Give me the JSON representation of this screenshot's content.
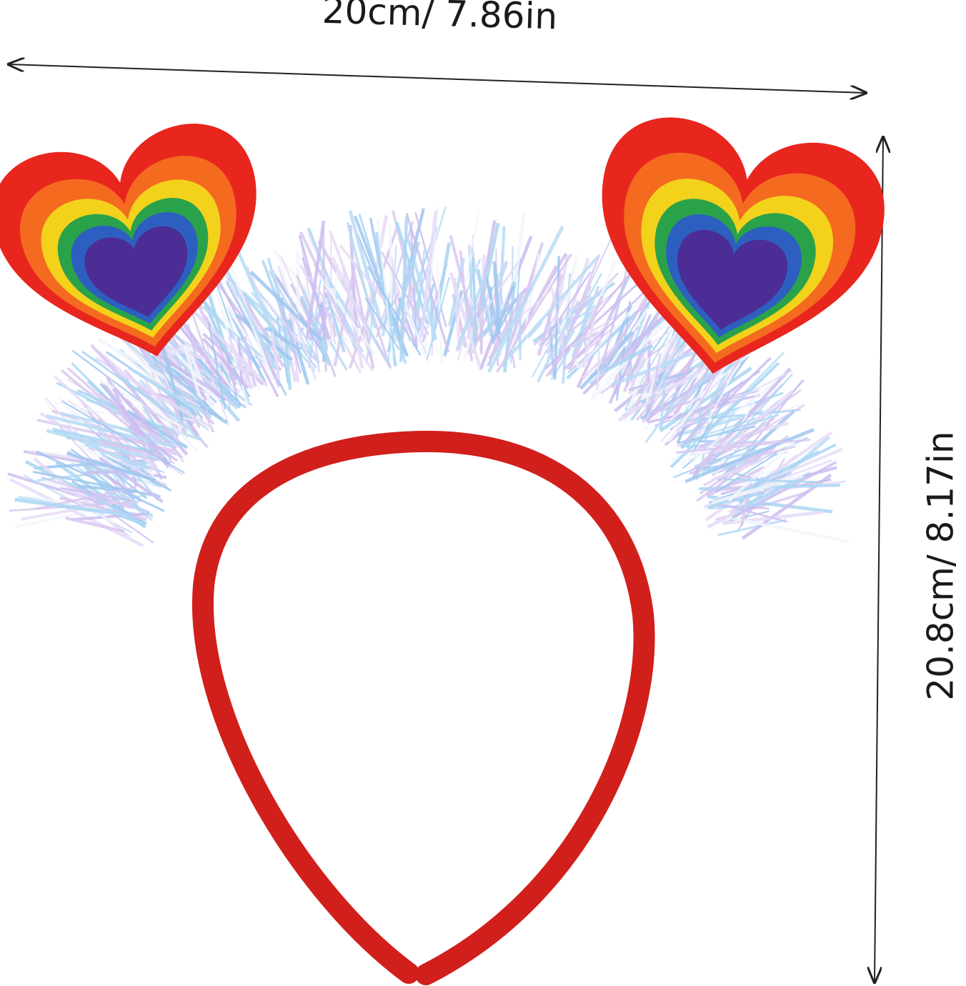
{
  "dimensions": {
    "width": "20cm/ 7.86in",
    "height": "20.8cm/ 8.17in"
  }
}
